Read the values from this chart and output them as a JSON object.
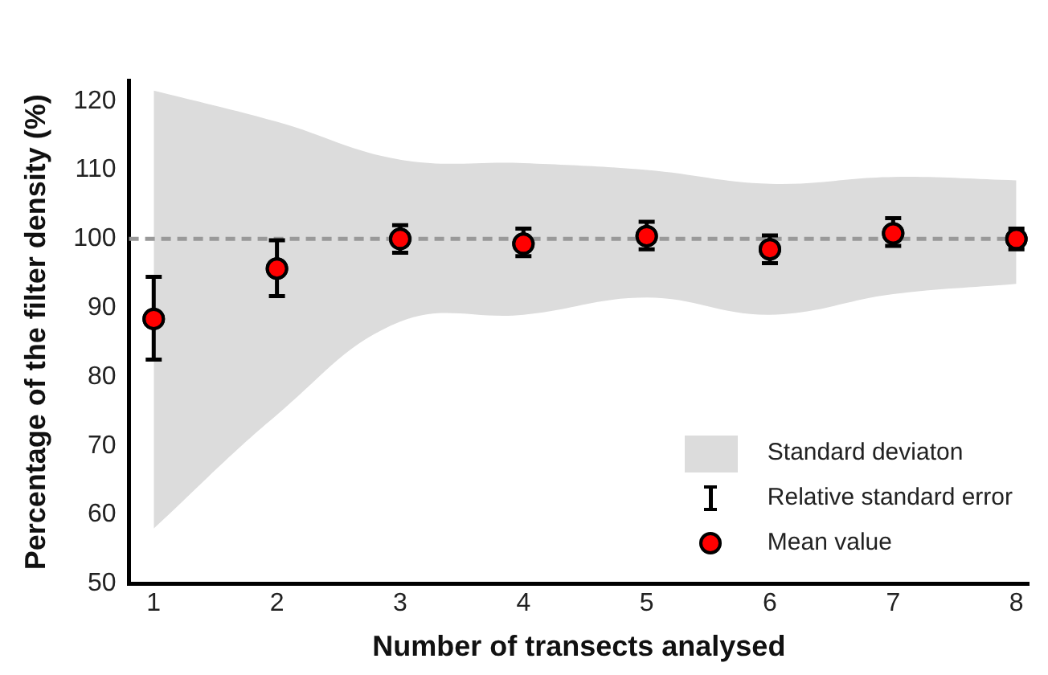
{
  "chart_data": {
    "type": "scatter",
    "xlabel": "Number of transects analysed",
    "ylabel": "Percentage of the filter density (%)",
    "x": [
      1,
      2,
      3,
      4,
      5,
      6,
      7,
      8
    ],
    "series": [
      {
        "name": "Mean value",
        "color": "#ff0000",
        "values": [
          88.4,
          95.7,
          100,
          99.3,
          100.4,
          98.5,
          100.8,
          100
        ],
        "errors": [
          [
            82.5,
            94.5
          ],
          [
            91.7,
            99.8
          ],
          [
            98,
            102
          ],
          [
            97.5,
            101.5
          ],
          [
            98.5,
            102.5
          ],
          [
            96.5,
            100.5
          ],
          [
            99,
            103
          ],
          [
            98.5,
            101.5
          ]
        ],
        "lower": [
          58,
          74.5,
          88,
          89,
          91.5,
          89,
          92,
          93.5
        ],
        "upper": [
          121.5,
          117,
          111.5,
          111,
          110,
          108,
          109,
          108.5
        ]
      }
    ],
    "annotations": [
      "Standard deviaton",
      "Relative standard error"
    ],
    "ref_lines": [
      {
        "axis": "y",
        "value": 100,
        "color": "#999999",
        "line_style": "dashed"
      }
    ],
    "xlim": [
      0.8,
      8.1
    ],
    "xticks": [
      1,
      2,
      3,
      4,
      5,
      6,
      7,
      8
    ],
    "ylim": [
      50,
      123
    ],
    "yticks": [
      50,
      60,
      70,
      80,
      90,
      100,
      110,
      120
    ],
    "grid": false,
    "legend": "bottom right",
    "marker": "circle"
  }
}
